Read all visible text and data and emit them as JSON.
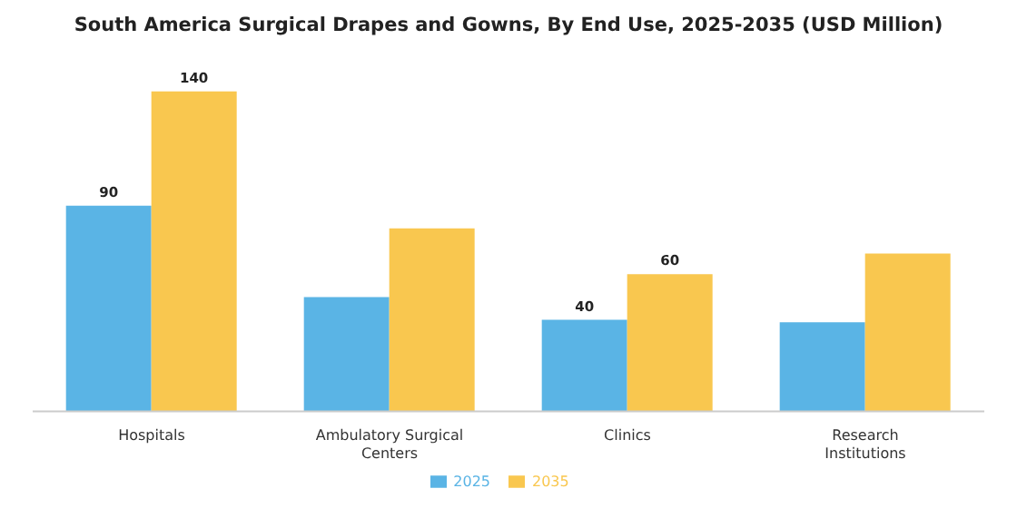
{
  "chart_data": {
    "type": "bar",
    "title": "South America Surgical Drapes and Gowns, By End Use, 2025-2035 (USD Million)",
    "categories": [
      "Hospitals",
      "Ambulatory Surgical Centers",
      "Clinics",
      "Research Institutions"
    ],
    "series": [
      {
        "name": "2025",
        "color": "#5ab4e5",
        "values": [
          90,
          50,
          40,
          39
        ],
        "value_labels": [
          "90",
          null,
          "40",
          null
        ]
      },
      {
        "name": "2035",
        "color": "#f9c74f",
        "values": [
          140,
          80,
          60,
          69
        ],
        "value_labels": [
          "140",
          null,
          "60",
          null
        ]
      }
    ],
    "grid": false,
    "legend": "bottom"
  }
}
